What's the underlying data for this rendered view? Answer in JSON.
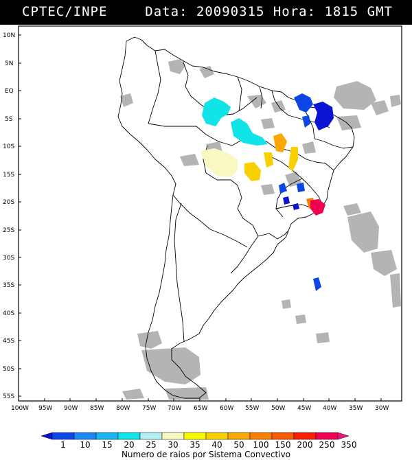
{
  "header": {
    "left": "CPTEC/INPE",
    "right": "Data: 20090315 Hora: 1815 GMT"
  },
  "axes": {
    "lat_labels": [
      "10N",
      "5N",
      "EQ",
      "5S",
      "10S",
      "15S",
      "20S",
      "25S",
      "30S",
      "35S",
      "40S",
      "45S",
      "50S",
      "55S"
    ],
    "lon_labels": [
      "100W",
      "95W",
      "90W",
      "85W",
      "80W",
      "75W",
      "70W",
      "65W",
      "60W",
      "55W",
      "50W",
      "45W",
      "40W",
      "35W",
      "30W"
    ]
  },
  "legend": {
    "caption": "Numero de raios por Sistema Convectivo",
    "labels": [
      "1",
      "10",
      "15",
      "20",
      "25",
      "30",
      "35",
      "40",
      "50",
      "100",
      "150",
      "200",
      "250",
      "350"
    ],
    "colors": [
      "#0a14d2",
      "#0c46e6",
      "#1a86f0",
      "#18b4f0",
      "#10e4e8",
      "#b4f0f0",
      "#f8f8c0",
      "#f8f800",
      "#f8d000",
      "#f8a800",
      "#f88000",
      "#f85a00",
      "#f81e00",
      "#f00050",
      "#f0147c"
    ]
  },
  "map": {
    "cloud_color": "#b4b4b4",
    "border_color": "#000000"
  }
}
